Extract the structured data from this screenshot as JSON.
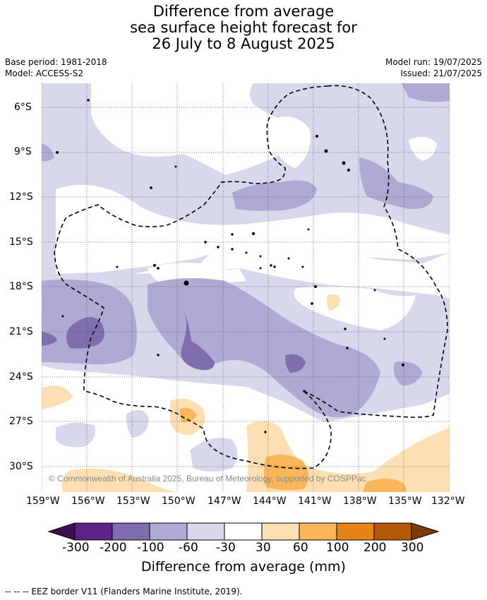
{
  "title": {
    "line1": "Difference from average",
    "line2": "sea surface height forecast for",
    "line3": "26 July to 8 August 2025"
  },
  "meta": {
    "base_period": "Base period: 1981-2018",
    "model": "Model: ACCESS-S2",
    "model_run": "Model run: 19/07/2025",
    "issued": "Issued: 21/07/2025"
  },
  "map": {
    "copyright": "© Commonwealth of Australia 2025, Bureau of Meteorology, supported by COSPPac",
    "lat_ticks": [
      "6°S",
      "9°S",
      "12°S",
      "15°S",
      "18°S",
      "21°S",
      "24°S",
      "27°S",
      "30°S"
    ],
    "lon_ticks": [
      "159°W",
      "156°W",
      "153°W",
      "150°W",
      "147°W",
      "144°W",
      "141°W",
      "138°W",
      "135°W",
      "132°W"
    ]
  },
  "colorbar": {
    "labels": [
      "-300",
      "-200",
      "-100",
      "-60",
      "-30",
      "30",
      "60",
      "100",
      "200",
      "300"
    ],
    "title": "Difference from average (mm)",
    "colors": {
      "under": "#3b0f50",
      "bins": [
        "#5b2386",
        "#7e6eae",
        "#aeaad3",
        "#d7d8eb",
        "#ffffff",
        "#fedfb3",
        "#fbb65c",
        "#e3831a",
        "#b35709"
      ],
      "over": "#7d3a0b"
    }
  },
  "footer": {
    "legend": "--  --  -- EEZ border V11 (Flanders Marine Institute, 2019)."
  }
}
